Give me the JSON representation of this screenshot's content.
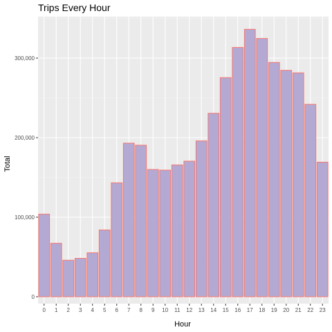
{
  "chart_data": {
    "type": "bar",
    "title": "Trips Every Hour",
    "xlabel": "Hour",
    "ylabel": "Total",
    "categories": [
      "0",
      "1",
      "2",
      "3",
      "4",
      "5",
      "6",
      "7",
      "8",
      "9",
      "10",
      "11",
      "12",
      "13",
      "14",
      "15",
      "16",
      "17",
      "18",
      "19",
      "20",
      "21",
      "22",
      "23"
    ],
    "values": [
      103836,
      67227,
      45865,
      48287,
      55230,
      83939,
      143213,
      193094,
      190504,
      159967,
      159148,
      165703,
      170452,
      195877,
      230625,
      275466,
      313400,
      336190,
      324679,
      294513,
      284604,
      281460,
      241858,
      169190
    ],
    "ylim": [
      0,
      352000
    ],
    "yticks": [
      0,
      100000,
      200000,
      300000
    ],
    "ytick_labels": [
      "0",
      "100,000",
      "200,000",
      "300,000"
    ],
    "grid": true,
    "colors": {
      "bar_fill": "#b3a9d3",
      "bar_stroke": "#f8766d",
      "panel_bg": "#ebebeb",
      "grid_major": "#ffffff",
      "grid_minor": "#f5f5f5"
    }
  }
}
